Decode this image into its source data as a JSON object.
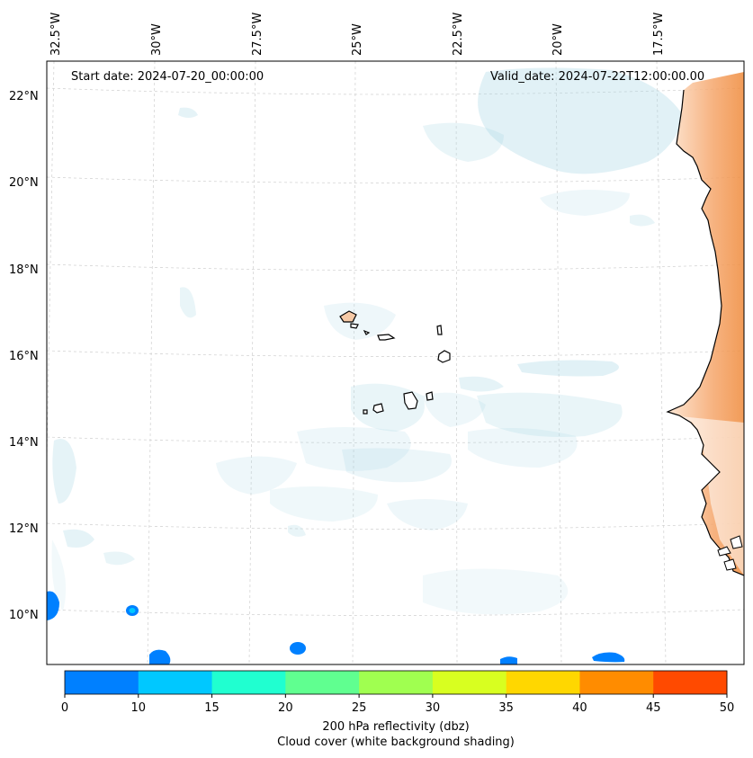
{
  "map": {
    "start_date_label": "Start date: 2024-07-20_00:00:00",
    "valid_date_label": "Valid_date: 2024-07-22T12:00:00.00",
    "lon_labels": [
      "32.5°W",
      "30°W",
      "27.5°W",
      "25°W",
      "22.5°W",
      "20°W",
      "17.5°W"
    ],
    "lat_labels": [
      "22°N",
      "20°N",
      "18°N",
      "16°N",
      "14°N",
      "12°N",
      "10°N"
    ],
    "land_color": "#f08a3c",
    "cloud_color": "#a9d6e5"
  },
  "colorbar": {
    "ticks": [
      "0",
      "10",
      "15",
      "20",
      "25",
      "30",
      "35",
      "40",
      "45",
      "50"
    ],
    "colors": [
      "#0080ff",
      "#00c8ff",
      "#20ffd0",
      "#60ff90",
      "#a0ff50",
      "#d8ff20",
      "#ffd700",
      "#ff8c00",
      "#ff4a00"
    ],
    "title_line1": "200 hPa reflectivity (dbz)",
    "title_line2": "Cloud cover (white background shading)"
  }
}
